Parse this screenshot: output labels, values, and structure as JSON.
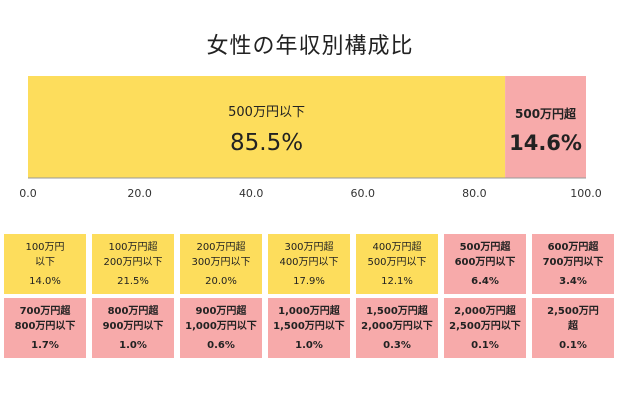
{
  "title": "女性の年収別構成比",
  "colors": {
    "low": "#fddd5c",
    "high": "#f7aaaa",
    "axis": "#999999",
    "text": "#222222"
  },
  "chart_data": {
    "type": "bar",
    "orientation": "horizontal-stacked",
    "series": [
      {
        "name": "500万円以下",
        "value": 85.5,
        "label": "85.5%",
        "color": "#fddd5c"
      },
      {
        "name": "500万円超",
        "value": 14.6,
        "label": "14.6%",
        "color": "#f7aaaa"
      }
    ],
    "xlim": [
      0,
      100
    ],
    "xticks": [
      "0.0",
      "20.0",
      "40.0",
      "60.0",
      "80.0",
      "100.0"
    ],
    "grid": false
  },
  "breakdown": [
    {
      "label": "100万円\n以下",
      "value": "14.0%",
      "group": "low"
    },
    {
      "label": "100万円超\n200万円以下",
      "value": "21.5%",
      "group": "low"
    },
    {
      "label": "200万円超\n300万円以下",
      "value": "20.0%",
      "group": "low"
    },
    {
      "label": "300万円超\n400万円以下",
      "value": "17.9%",
      "group": "low"
    },
    {
      "label": "400万円超\n500万円以下",
      "value": "12.1%",
      "group": "low"
    },
    {
      "label": "500万円超\n600万円以下",
      "value": "6.4%",
      "group": "high"
    },
    {
      "label": "600万円超\n700万円以下",
      "value": "3.4%",
      "group": "high"
    },
    {
      "label": "700万円超\n800万円以下",
      "value": "1.7%",
      "group": "high"
    },
    {
      "label": "800万円超\n900万円以下",
      "value": "1.0%",
      "group": "high"
    },
    {
      "label": "900万円超\n1,000万円以下",
      "value": "0.6%",
      "group": "high"
    },
    {
      "label": "1,000万円超\n1,500万円以下",
      "value": "1.0%",
      "group": "high"
    },
    {
      "label": "1,500万円超\n2,000万円以下",
      "value": "0.3%",
      "group": "high"
    },
    {
      "label": "2,000万円超\n2,500万円以下",
      "value": "0.1%",
      "group": "high"
    },
    {
      "label": "2,500万円\n超",
      "value": "0.1%",
      "group": "high"
    }
  ]
}
